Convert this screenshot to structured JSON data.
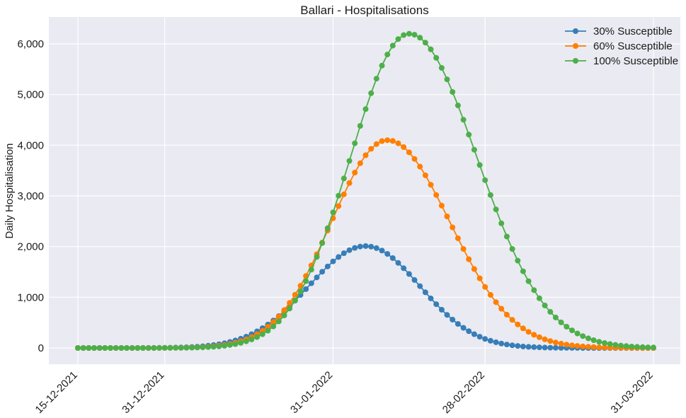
{
  "chart_data": {
    "type": "line",
    "title": "Ballari - Hospitalisations",
    "xlabel": "",
    "ylabel": "Daily Hospitalisation",
    "x_start": "15-12-2021",
    "x_end": "31-03-2022",
    "x_ticks": [
      "15-12-2021",
      "31-12-2021",
      "31-01-2022",
      "28-02-2022",
      "31-03-2022"
    ],
    "y_ticks": [
      "0",
      "1,000",
      "2,000",
      "3,000",
      "4,000",
      "5,000",
      "6,000"
    ],
    "ylim": [
      -300,
      6500
    ],
    "grid": true,
    "legend_position": "top-right",
    "series": [
      {
        "name": "30% Susceptible",
        "color": "#377eb8",
        "peak_date": "06-02-2022",
        "peak": 2010,
        "left_width_days": 10.5,
        "right_width_days": 10
      },
      {
        "name": "60% Susceptible",
        "color": "#ff7f00",
        "peak_date": "10-02-2022",
        "peak": 4100,
        "left_width_days": 10.3,
        "right_width_days": 11.5
      },
      {
        "name": "100% Susceptible",
        "color": "#4daf4a",
        "peak_date": "14-02-2022",
        "peak": 6200,
        "left_width_days": 10.8,
        "right_width_days": 12.5
      }
    ]
  }
}
